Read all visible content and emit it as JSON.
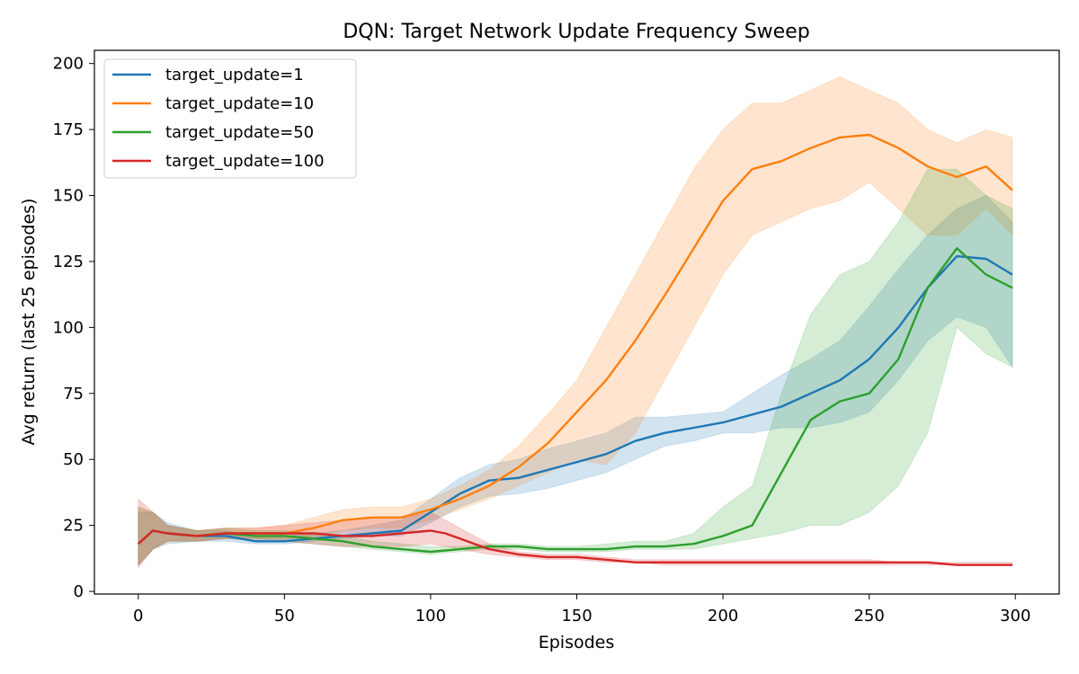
{
  "chart_data": {
    "type": "line",
    "title": "DQN: Target Network Update Frequency Sweep",
    "xlabel": "Episodes",
    "ylabel": "Avg return (last 25 episodes)",
    "xlim": [
      -15,
      315
    ],
    "ylim": [
      -1,
      205
    ],
    "xticks": [
      0,
      50,
      100,
      150,
      200,
      250,
      300
    ],
    "yticks": [
      0,
      25,
      50,
      75,
      100,
      125,
      150,
      175,
      200
    ],
    "grid": false,
    "legend": "top-left",
    "series": [
      {
        "name": "target_update=1",
        "color": "#1f77b4",
        "x": [
          0,
          5,
          10,
          20,
          30,
          40,
          50,
          60,
          70,
          80,
          90,
          100,
          110,
          120,
          130,
          140,
          150,
          160,
          170,
          180,
          190,
          200,
          210,
          220,
          230,
          240,
          250,
          260,
          270,
          280,
          290,
          299
        ],
        "mean": [
          18,
          23,
          22,
          21,
          21,
          19,
          19,
          20,
          21,
          22,
          23,
          30,
          37,
          42,
          43,
          46,
          49,
          52,
          57,
          60,
          62,
          64,
          67,
          70,
          75,
          80,
          88,
          100,
          115,
          127,
          126,
          120
        ],
        "lower": [
          10,
          16,
          18,
          19,
          19,
          18,
          18,
          19,
          20,
          21,
          21,
          26,
          32,
          36,
          37,
          39,
          42,
          45,
          50,
          55,
          57,
          60,
          60,
          62,
          62,
          64,
          68,
          80,
          95,
          104,
          100,
          85
        ],
        "upper": [
          30,
          30,
          26,
          23,
          23,
          21,
          21,
          22,
          23,
          25,
          27,
          35,
          43,
          48,
          50,
          54,
          57,
          60,
          66,
          66,
          67,
          68,
          75,
          82,
          88,
          95,
          108,
          122,
          135,
          145,
          150,
          140
        ]
      },
      {
        "name": "target_update=10",
        "color": "#ff7f0e",
        "x": [
          0,
          5,
          10,
          20,
          30,
          40,
          50,
          60,
          70,
          80,
          90,
          100,
          110,
          120,
          130,
          140,
          150,
          160,
          170,
          180,
          190,
          200,
          210,
          220,
          230,
          240,
          250,
          260,
          270,
          280,
          290,
          299
        ],
        "mean": [
          18,
          23,
          22,
          21,
          22,
          22,
          22,
          24,
          27,
          28,
          28,
          31,
          35,
          40,
          47,
          56,
          68,
          80,
          95,
          112,
          130,
          148,
          160,
          163,
          168,
          172,
          173,
          168,
          161,
          157,
          161,
          152
        ],
        "lower": [
          10,
          16,
          19,
          19,
          20,
          20,
          20,
          21,
          23,
          24,
          24,
          27,
          31,
          35,
          40,
          45,
          50,
          48,
          60,
          80,
          100,
          120,
          135,
          140,
          145,
          148,
          155,
          145,
          135,
          135,
          145,
          135
        ],
        "upper": [
          32,
          30,
          25,
          23,
          24,
          24,
          25,
          28,
          31,
          32,
          32,
          35,
          40,
          46,
          55,
          67,
          80,
          100,
          120,
          140,
          160,
          175,
          185,
          185,
          190,
          195,
          190,
          185,
          175,
          170,
          175,
          172
        ]
      },
      {
        "name": "target_update=50",
        "color": "#2ca02c",
        "x": [
          0,
          5,
          10,
          20,
          30,
          40,
          50,
          60,
          70,
          80,
          90,
          100,
          110,
          120,
          130,
          140,
          150,
          160,
          170,
          180,
          190,
          200,
          210,
          220,
          230,
          240,
          250,
          260,
          270,
          280,
          290,
          299
        ],
        "mean": [
          18,
          23,
          22,
          21,
          22,
          21,
          21,
          20,
          19,
          17,
          16,
          15,
          16,
          17,
          17,
          16,
          16,
          16,
          17,
          17,
          18,
          21,
          25,
          45,
          65,
          72,
          75,
          88,
          115,
          130,
          120,
          115
        ],
        "lower": [
          10,
          16,
          19,
          19,
          20,
          19,
          19,
          18,
          17,
          16,
          15,
          14,
          15,
          16,
          16,
          15,
          15,
          15,
          16,
          16,
          16,
          18,
          20,
          22,
          25,
          25,
          30,
          40,
          60,
          100,
          90,
          85
        ],
        "upper": [
          32,
          30,
          25,
          23,
          24,
          23,
          23,
          22,
          21,
          19,
          18,
          17,
          17,
          18,
          18,
          17,
          17,
          18,
          19,
          19,
          22,
          32,
          40,
          75,
          105,
          120,
          125,
          140,
          160,
          160,
          150,
          145
        ]
      },
      {
        "name": "target_update=100",
        "color": "#d62728",
        "x": [
          0,
          5,
          10,
          20,
          30,
          40,
          50,
          60,
          70,
          80,
          90,
          100,
          105,
          110,
          115,
          120,
          130,
          140,
          150,
          160,
          170,
          180,
          190,
          200,
          210,
          220,
          230,
          240,
          250,
          260,
          270,
          280,
          290,
          299
        ],
        "mean": [
          18,
          23,
          22,
          21,
          22,
          22,
          22,
          22,
          21,
          21,
          22,
          23,
          22,
          20,
          18,
          16,
          14,
          13,
          13,
          12,
          11,
          11,
          11,
          11,
          11,
          11,
          11,
          11,
          11,
          11,
          11,
          10,
          10,
          10
        ],
        "lower": [
          9,
          16,
          19,
          19,
          20,
          20,
          19,
          18,
          17,
          17,
          17,
          18,
          17,
          16,
          15,
          14,
          13,
          12,
          12,
          11,
          11,
          10,
          10,
          10,
          10,
          10,
          10,
          10,
          10,
          10,
          10,
          10,
          10,
          10
        ],
        "upper": [
          35,
          30,
          25,
          23,
          24,
          24,
          25,
          26,
          27,
          28,
          28,
          30,
          27,
          24,
          21,
          18,
          15,
          14,
          14,
          13,
          12,
          12,
          12,
          12,
          12,
          12,
          12,
          12,
          12,
          11,
          11,
          11,
          11,
          11
        ]
      }
    ]
  }
}
